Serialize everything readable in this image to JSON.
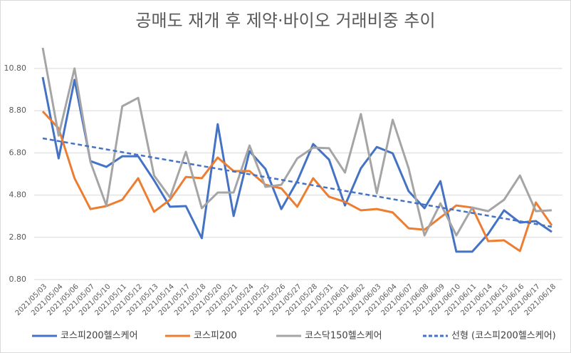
{
  "chart_data": {
    "type": "line",
    "title": "공매도 재개 후 제약·바이오 거래비중 추이",
    "categories": [
      "2021/05/03",
      "2021/05/04",
      "2021/05/06",
      "2021/05/07",
      "2021/05/10",
      "2021/05/11",
      "2021/05/12",
      "2021/05/13",
      "2021/05/14",
      "2021/05/17",
      "2021/05/18",
      "2021/05/20",
      "2021/05/21",
      "2021/05/24",
      "2021/05/25",
      "2021/05/26",
      "2021/05/27",
      "2021/05/28",
      "2021/05/31",
      "2021/06/01",
      "2021/06/02",
      "2021/06/03",
      "2021/06/04",
      "2021/06/07",
      "2021/06/08",
      "2021/06/09",
      "2021/06/10",
      "2021/06/11",
      "2021/06/14",
      "2021/06/15",
      "2021/06/16",
      "2021/06/17",
      "2021/06/18"
    ],
    "series": [
      {
        "name": "코스피200헬스케어",
        "color": "#4472c4",
        "values": [
          10.39,
          6.54,
          10.26,
          6.41,
          6.14,
          6.64,
          6.64,
          5.5,
          4.25,
          4.28,
          2.76,
          8.16,
          3.81,
          6.88,
          6.04,
          4.14,
          5.46,
          7.22,
          6.48,
          4.31,
          6.07,
          7.08,
          6.78,
          4.99,
          4.18,
          5.46,
          2.12,
          2.12,
          2.96,
          4.08,
          3.5,
          3.57,
          3.06
        ]
      },
      {
        "name": "코스피200",
        "color": "#ed7d31",
        "values": [
          8.77,
          7.96,
          5.6,
          4.14,
          4.28,
          4.58,
          5.6,
          4.01,
          4.58,
          5.66,
          5.6,
          6.58,
          5.94,
          5.94,
          5.29,
          5.12,
          4.25,
          5.6,
          4.72,
          4.48,
          4.08,
          4.14,
          3.98,
          3.23,
          3.16,
          3.74,
          4.31,
          4.21,
          2.62,
          2.66,
          2.15,
          4.45,
          3.37
        ]
      },
      {
        "name": "코스닥150헬스케어",
        "color": "#a5a5a5",
        "values": [
          11.78,
          7.62,
          10.8,
          6.37,
          4.31,
          9.01,
          9.41,
          5.73,
          4.69,
          6.85,
          4.18,
          4.92,
          4.92,
          7.15,
          5.19,
          5.29,
          6.54,
          7.05,
          7.02,
          5.87,
          8.64,
          4.89,
          8.37,
          6.07,
          2.89,
          4.41,
          2.89,
          4.21,
          4.04,
          4.58,
          5.73,
          4.04,
          4.08
        ]
      }
    ],
    "trendline": {
      "name": "선형 (코스피200헬스케어)",
      "color": "#4472c4",
      "values": [
        7.49,
        3.3
      ]
    },
    "ylim": [
      0.8,
      12.0
    ],
    "yticks": [
      {
        "value": 0.8,
        "label": "0.80"
      },
      {
        "value": 2.8,
        "label": "2.80"
      },
      {
        "value": 4.8,
        "label": "4.80"
      },
      {
        "value": 6.8,
        "label": "6.80"
      },
      {
        "value": 8.8,
        "label": "8.80"
      },
      {
        "value": 10.8,
        "label": "10.80"
      }
    ],
    "grid": true
  }
}
